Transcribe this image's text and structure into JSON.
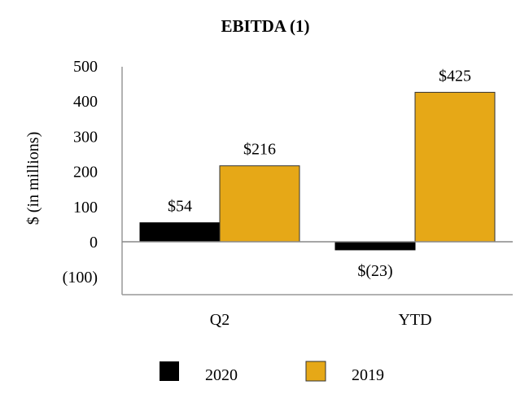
{
  "chart_data": {
    "type": "bar",
    "title": "EBITDA (1)",
    "ylabel": "$ (in millions)",
    "xlabel": "",
    "categories": [
      "Q2",
      "YTD"
    ],
    "y_tick_labels": [
      "(100)",
      "0",
      "100",
      "200",
      "300",
      "400",
      "500"
    ],
    "ylim": [
      -150,
      500
    ],
    "grid": false,
    "legend_position": "bottom",
    "series": [
      {
        "name": "2020",
        "color": "#000000",
        "values": [
          54,
          -23
        ],
        "data_labels": [
          "$54",
          "$(23)"
        ]
      },
      {
        "name": "2019",
        "color": "#E6A817",
        "values": [
          216,
          425
        ],
        "data_labels": [
          "$216",
          "$425"
        ]
      }
    ]
  }
}
